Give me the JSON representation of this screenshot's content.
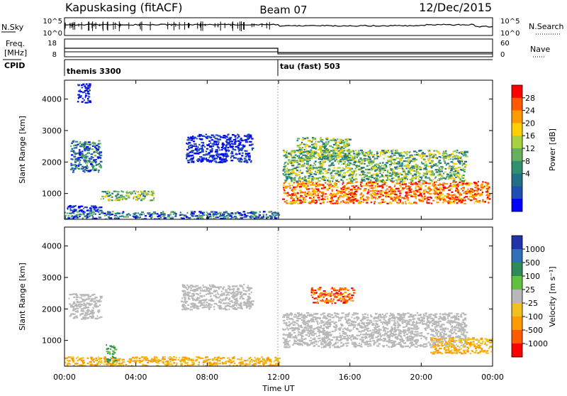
{
  "header": {
    "station": "Kapuskasing (fitACF)",
    "beam": "Beam 07",
    "date": "12/Dec/2015"
  },
  "aux_panel": {
    "nsky_label": "N.Sky",
    "nsearch_label": "N.Search",
    "nsky_ticks": [
      "10^5",
      "10^0"
    ],
    "nsearch_ticks": [
      "10^5",
      "10^0"
    ],
    "freq_label_line1": "Freq.",
    "freq_label_line2": "[MHz]",
    "freq_ticks": [
      "18",
      "8"
    ],
    "nave_label": "Nave",
    "nave_ticks": [
      "60",
      "0"
    ],
    "cpid_label": "CPID",
    "cpid_segments": [
      {
        "name": "themis 3300",
        "start_hour": 0
      },
      {
        "name": "tau (fast) 503",
        "start_hour": 12
      }
    ]
  },
  "colorbars": {
    "power": {
      "label": "Power [dB]",
      "ticks": [
        "28",
        "24",
        "20",
        "16",
        "12",
        "8",
        "4"
      ],
      "colors": [
        "#ff0000",
        "#ff5a00",
        "#ff9900",
        "#ffd000",
        "#a8d040",
        "#66b060",
        "#2e9070",
        "#226f88",
        "#1f4fb0",
        "#0000ff"
      ]
    },
    "velocity": {
      "label": "Velocity [m s⁻¹]",
      "ticks": [
        "1000",
        "500",
        "100",
        "25",
        "-25",
        "-100",
        "-500",
        "-1000"
      ],
      "colors": [
        "#2233aa",
        "#3070b8",
        "#2e8b57",
        "#60c040",
        "#b8b8b8",
        "#f0c020",
        "#ff9900",
        "#ff5a00",
        "#ff0000"
      ]
    }
  },
  "chart_data": [
    {
      "type": "heatmap",
      "parameter": "Power",
      "xlabel": "",
      "ylabel": "Slant Range [km]",
      "xlim_hours": [
        0,
        24
      ],
      "ylim_km": [
        180,
        4600
      ],
      "yticks": [
        "1000",
        "2000",
        "3000",
        "4000"
      ],
      "regions": [
        {
          "t0": 0.0,
          "t1": 12.0,
          "r0": 200,
          "r1": 450,
          "level": "low-mid"
        },
        {
          "t0": 0.0,
          "t1": 2.0,
          "r0": 450,
          "r1": 650,
          "level": "low"
        },
        {
          "t0": 0.3,
          "t1": 2.0,
          "r0": 1700,
          "r1": 2700,
          "level": "low-mid"
        },
        {
          "t0": 0.7,
          "t1": 1.4,
          "r0": 3900,
          "r1": 4500,
          "level": "low"
        },
        {
          "t0": 2.0,
          "t1": 5.0,
          "r0": 800,
          "r1": 1100,
          "level": "mid"
        },
        {
          "t0": 6.8,
          "t1": 10.5,
          "r0": 2000,
          "r1": 2900,
          "level": "low"
        },
        {
          "t0": 12.2,
          "t1": 23.8,
          "r0": 700,
          "r1": 1400,
          "level": "high"
        },
        {
          "t0": 12.2,
          "t1": 22.5,
          "r0": 1400,
          "r1": 2400,
          "level": "mid"
        },
        {
          "t0": 13.0,
          "t1": 16.0,
          "r0": 2100,
          "r1": 2800,
          "level": "mid"
        }
      ]
    },
    {
      "type": "heatmap",
      "parameter": "Velocity",
      "xlabel": "Time UT",
      "ylabel": "Slant Range [km]",
      "xlim_hours": [
        0,
        24
      ],
      "ylim_km": [
        180,
        4600
      ],
      "yticks": [
        "1000",
        "2000",
        "3000",
        "4000"
      ],
      "xticks": [
        "00:00",
        "04:00",
        "08:00",
        "12:00",
        "16:00",
        "20:00",
        "00:00"
      ],
      "regions": [
        {
          "t0": 0.0,
          "t1": 12.0,
          "r0": 200,
          "r1": 500,
          "level": "negative-slow"
        },
        {
          "t0": 0.2,
          "t1": 2.0,
          "r0": 1700,
          "r1": 2500,
          "level": "near-zero"
        },
        {
          "t0": 2.3,
          "t1": 2.8,
          "r0": 300,
          "r1": 900,
          "level": "positive"
        },
        {
          "t0": 6.5,
          "t1": 10.5,
          "r0": 2000,
          "r1": 2800,
          "level": "near-zero"
        },
        {
          "t0": 12.2,
          "t1": 22.5,
          "r0": 800,
          "r1": 1900,
          "level": "near-zero"
        },
        {
          "t0": 20.5,
          "t1": 24.0,
          "r0": 600,
          "r1": 1100,
          "level": "negative-slow"
        },
        {
          "t0": 13.8,
          "t1": 16.2,
          "r0": 2200,
          "r1": 2700,
          "level": "negative-fast"
        }
      ]
    }
  ]
}
